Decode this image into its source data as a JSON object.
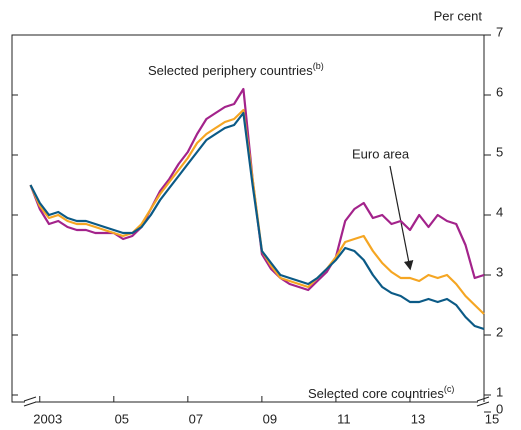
{
  "chart_data": {
    "type": "line",
    "y_label": "Per cent",
    "x": [
      2002.75,
      2003,
      2003.25,
      2003.5,
      2003.75,
      2004,
      2004.25,
      2004.5,
      2004.75,
      2005,
      2005.25,
      2005.5,
      2005.75,
      2006,
      2006.25,
      2006.5,
      2006.75,
      2007,
      2007.25,
      2007.5,
      2007.75,
      2008,
      2008.25,
      2008.5,
      2008.75,
      2009,
      2009.25,
      2009.5,
      2009.75,
      2010,
      2010.25,
      2010.5,
      2010.75,
      2011,
      2011.25,
      2011.5,
      2011.75,
      2012,
      2012.25,
      2012.5,
      2012.75,
      2013,
      2013.25,
      2013.5,
      2013.75,
      2014,
      2014.25,
      2014.5,
      2014.75,
      2015
    ],
    "xlim": [
      2002.25,
      2015
    ],
    "xticks": [
      {
        "value": 2003,
        "label": "2003"
      },
      {
        "value": 2005,
        "label": "05"
      },
      {
        "value": 2007,
        "label": "07"
      },
      {
        "value": 2009,
        "label": "09"
      },
      {
        "value": 2011,
        "label": "11"
      },
      {
        "value": 2013,
        "label": "13"
      },
      {
        "value": 2015,
        "label": "15"
      }
    ],
    "ylim": [
      0,
      7
    ],
    "yticks": [
      0,
      1,
      2,
      3,
      4,
      5,
      6,
      7
    ],
    "y_axis_break": [
      0,
      1
    ],
    "series": [
      {
        "name": "Selected periphery countries",
        "footnote": "(b)",
        "color": "#a3238b",
        "values": [
          4.5,
          4.1,
          3.85,
          3.9,
          3.8,
          3.75,
          3.75,
          3.7,
          3.7,
          3.7,
          3.6,
          3.65,
          3.8,
          4.1,
          4.4,
          4.6,
          4.85,
          5.05,
          5.35,
          5.6,
          5.7,
          5.8,
          5.85,
          6.1,
          4.6,
          3.35,
          3.1,
          2.95,
          2.85,
          2.8,
          2.75,
          2.9,
          3.05,
          3.3,
          3.9,
          4.1,
          4.2,
          3.95,
          4.0,
          3.85,
          3.9,
          3.75,
          4.0,
          3.8,
          4.0,
          3.9,
          3.85,
          3.5,
          2.95,
          3.0
        ]
      },
      {
        "name": "Euro area",
        "color": "#f5a623",
        "values": [
          4.5,
          4.15,
          3.95,
          4.0,
          3.9,
          3.85,
          3.85,
          3.8,
          3.75,
          3.7,
          3.65,
          3.7,
          3.85,
          4.1,
          4.35,
          4.55,
          4.75,
          4.95,
          5.2,
          5.35,
          5.45,
          5.55,
          5.6,
          5.75,
          4.6,
          3.4,
          3.15,
          2.95,
          2.9,
          2.85,
          2.8,
          2.95,
          3.1,
          3.3,
          3.55,
          3.6,
          3.65,
          3.4,
          3.2,
          3.05,
          2.95,
          2.95,
          2.9,
          3.0,
          2.95,
          3.0,
          2.85,
          2.65,
          2.5,
          2.35
        ]
      },
      {
        "name": "Selected core countries",
        "footnote": "(c)",
        "color": "#0b5a86",
        "values": [
          4.5,
          4.2,
          4.0,
          4.05,
          3.95,
          3.9,
          3.9,
          3.85,
          3.8,
          3.75,
          3.7,
          3.7,
          3.8,
          4.0,
          4.25,
          4.45,
          4.65,
          4.85,
          5.05,
          5.25,
          5.35,
          5.45,
          5.5,
          5.7,
          4.5,
          3.4,
          3.2,
          3.0,
          2.95,
          2.9,
          2.85,
          2.95,
          3.1,
          3.25,
          3.45,
          3.4,
          3.25,
          3.0,
          2.8,
          2.7,
          2.65,
          2.55,
          2.55,
          2.6,
          2.55,
          2.6,
          2.5,
          2.3,
          2.15,
          2.1
        ]
      }
    ]
  }
}
